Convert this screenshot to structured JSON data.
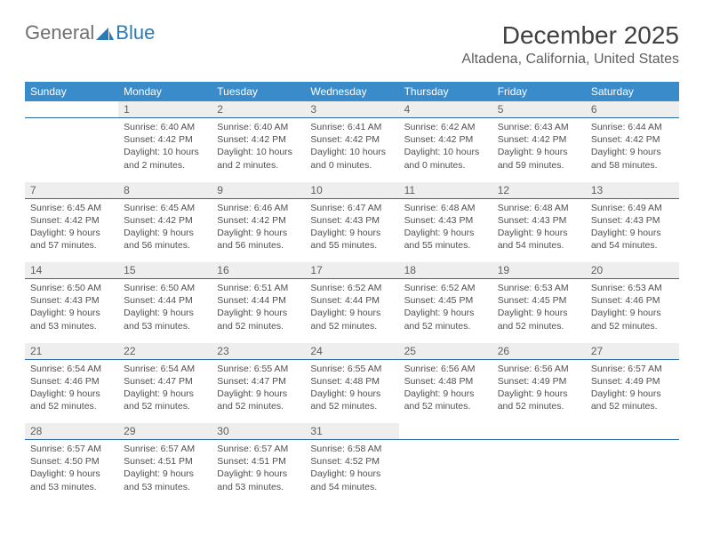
{
  "logo": {
    "general": "General",
    "blue": "Blue"
  },
  "title": "December 2025",
  "location": "Altadena, California, United States",
  "colors": {
    "header_bg": "#3a8bc9",
    "header_text": "#ffffff",
    "daynum_bg": "#eeeeee",
    "daynum_border": "#2a6aa0",
    "body_text": "#505050",
    "logo_gray": "#707070",
    "logo_blue": "#2a7ab8"
  },
  "daysOfWeek": [
    "Sunday",
    "Monday",
    "Tuesday",
    "Wednesday",
    "Thursday",
    "Friday",
    "Saturday"
  ],
  "weeks": [
    [
      null,
      {
        "n": "1",
        "sr": "6:40 AM",
        "ss": "4:42 PM",
        "dl": "10 hours and 2 minutes."
      },
      {
        "n": "2",
        "sr": "6:40 AM",
        "ss": "4:42 PM",
        "dl": "10 hours and 2 minutes."
      },
      {
        "n": "3",
        "sr": "6:41 AM",
        "ss": "4:42 PM",
        "dl": "10 hours and 0 minutes."
      },
      {
        "n": "4",
        "sr": "6:42 AM",
        "ss": "4:42 PM",
        "dl": "10 hours and 0 minutes."
      },
      {
        "n": "5",
        "sr": "6:43 AM",
        "ss": "4:42 PM",
        "dl": "9 hours and 59 minutes."
      },
      {
        "n": "6",
        "sr": "6:44 AM",
        "ss": "4:42 PM",
        "dl": "9 hours and 58 minutes."
      }
    ],
    [
      {
        "n": "7",
        "sr": "6:45 AM",
        "ss": "4:42 PM",
        "dl": "9 hours and 57 minutes."
      },
      {
        "n": "8",
        "sr": "6:45 AM",
        "ss": "4:42 PM",
        "dl": "9 hours and 56 minutes."
      },
      {
        "n": "9",
        "sr": "6:46 AM",
        "ss": "4:42 PM",
        "dl": "9 hours and 56 minutes."
      },
      {
        "n": "10",
        "sr": "6:47 AM",
        "ss": "4:43 PM",
        "dl": "9 hours and 55 minutes."
      },
      {
        "n": "11",
        "sr": "6:48 AM",
        "ss": "4:43 PM",
        "dl": "9 hours and 55 minutes."
      },
      {
        "n": "12",
        "sr": "6:48 AM",
        "ss": "4:43 PM",
        "dl": "9 hours and 54 minutes."
      },
      {
        "n": "13",
        "sr": "6:49 AM",
        "ss": "4:43 PM",
        "dl": "9 hours and 54 minutes."
      }
    ],
    [
      {
        "n": "14",
        "sr": "6:50 AM",
        "ss": "4:43 PM",
        "dl": "9 hours and 53 minutes."
      },
      {
        "n": "15",
        "sr": "6:50 AM",
        "ss": "4:44 PM",
        "dl": "9 hours and 53 minutes."
      },
      {
        "n": "16",
        "sr": "6:51 AM",
        "ss": "4:44 PM",
        "dl": "9 hours and 52 minutes."
      },
      {
        "n": "17",
        "sr": "6:52 AM",
        "ss": "4:44 PM",
        "dl": "9 hours and 52 minutes."
      },
      {
        "n": "18",
        "sr": "6:52 AM",
        "ss": "4:45 PM",
        "dl": "9 hours and 52 minutes."
      },
      {
        "n": "19",
        "sr": "6:53 AM",
        "ss": "4:45 PM",
        "dl": "9 hours and 52 minutes."
      },
      {
        "n": "20",
        "sr": "6:53 AM",
        "ss": "4:46 PM",
        "dl": "9 hours and 52 minutes."
      }
    ],
    [
      {
        "n": "21",
        "sr": "6:54 AM",
        "ss": "4:46 PM",
        "dl": "9 hours and 52 minutes."
      },
      {
        "n": "22",
        "sr": "6:54 AM",
        "ss": "4:47 PM",
        "dl": "9 hours and 52 minutes."
      },
      {
        "n": "23",
        "sr": "6:55 AM",
        "ss": "4:47 PM",
        "dl": "9 hours and 52 minutes."
      },
      {
        "n": "24",
        "sr": "6:55 AM",
        "ss": "4:48 PM",
        "dl": "9 hours and 52 minutes."
      },
      {
        "n": "25",
        "sr": "6:56 AM",
        "ss": "4:48 PM",
        "dl": "9 hours and 52 minutes."
      },
      {
        "n": "26",
        "sr": "6:56 AM",
        "ss": "4:49 PM",
        "dl": "9 hours and 52 minutes."
      },
      {
        "n": "27",
        "sr": "6:57 AM",
        "ss": "4:49 PM",
        "dl": "9 hours and 52 minutes."
      }
    ],
    [
      {
        "n": "28",
        "sr": "6:57 AM",
        "ss": "4:50 PM",
        "dl": "9 hours and 53 minutes."
      },
      {
        "n": "29",
        "sr": "6:57 AM",
        "ss": "4:51 PM",
        "dl": "9 hours and 53 minutes."
      },
      {
        "n": "30",
        "sr": "6:57 AM",
        "ss": "4:51 PM",
        "dl": "9 hours and 53 minutes."
      },
      {
        "n": "31",
        "sr": "6:58 AM",
        "ss": "4:52 PM",
        "dl": "9 hours and 54 minutes."
      },
      null,
      null,
      null
    ]
  ],
  "labels": {
    "sunrise": "Sunrise:",
    "sunset": "Sunset:",
    "daylight": "Daylight:"
  }
}
